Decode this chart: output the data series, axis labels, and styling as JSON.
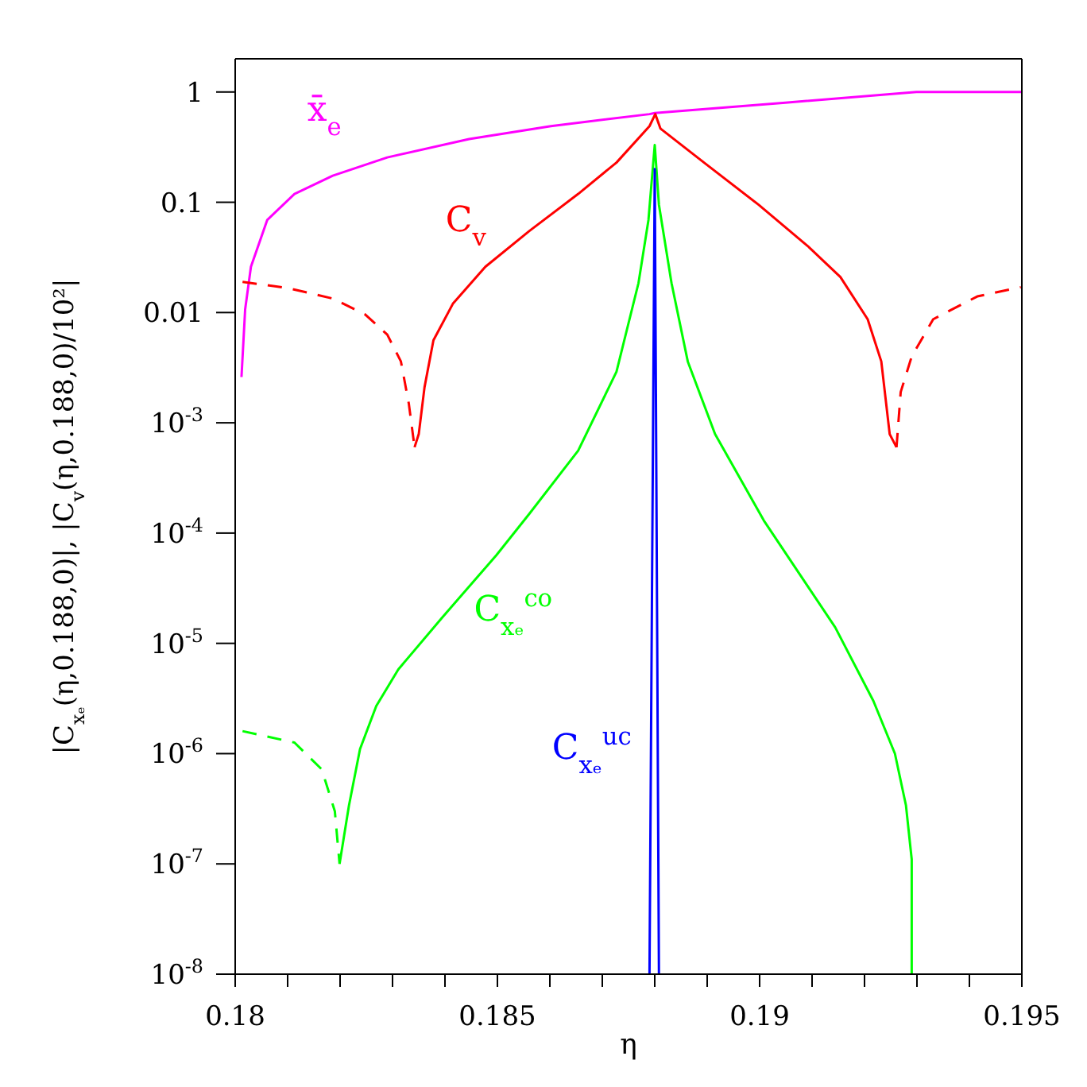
{
  "chart_data": {
    "type": "line",
    "xlabel": "η",
    "ylabel": "|C$_{xₑ}$(η,0.188,0)|,  |C$_{v}$(η,0.188,0)/10²|",
    "xlim": [
      0.18,
      0.195
    ],
    "xticks": [
      0.18,
      {
        "value": 0.181,
        "label": null
      },
      {
        "value": 0.182,
        "label": null
      },
      {
        "value": 0.183,
        "label": null
      },
      {
        "value": 0.184,
        "label": null
      },
      0.185,
      {
        "value": 0.186,
        "label": null
      },
      {
        "value": 0.187,
        "label": null
      },
      {
        "value": 0.188,
        "label": null
      },
      {
        "value": 0.189,
        "label": null
      },
      0.19,
      {
        "value": 0.191,
        "label": null
      },
      {
        "value": 0.192,
        "label": null
      },
      {
        "value": 0.193,
        "label": null
      },
      {
        "value": 0.194,
        "label": null
      },
      0.195
    ],
    "ylim": [
      1e-08,
      2
    ],
    "yticks": [
      {
        "value": 1e-08,
        "label": "10$^{-8}$"
      },
      {
        "value": 1e-07,
        "label": "10$^{-7}$"
      },
      {
        "value": 1e-06,
        "label": "10$^{-6}$"
      },
      {
        "value": 1e-05,
        "label": "10$^{-5}$"
      },
      {
        "value": 0.0001,
        "label": "10$^{-4}$"
      },
      {
        "value": 0.001,
        "label": "10$^{-3}$"
      },
      0.01,
      0.1,
      1
    ],
    "log": "y",
    "grid": false,
    "marker": "none",
    "series": [
      {
        "name": "x̄$_{e}$",
        "color": "#ff00ff",
        "line_style": "solid",
        "x": [
          0.18012,
          0.18019,
          0.1803,
          0.18061,
          0.18113,
          0.18186,
          0.1829,
          0.18446,
          0.18602,
          0.1879,
          0.188,
          0.19049,
          0.19299,
          0.195
        ],
        "values": [
          0.0026,
          0.0107,
          0.026,
          0.069,
          0.119,
          0.174,
          0.255,
          0.374,
          0.491,
          0.63,
          0.645,
          0.8,
          1.0,
          1.0
        ]
      },
      {
        "name": "C$_{v}$",
        "color": "#ff0000",
        "line_style": "solid",
        "x": [
          0.18342,
          0.1835,
          0.18361,
          0.18378,
          0.18415,
          0.18477,
          0.18561,
          0.18654,
          0.18727,
          0.1879,
          0.18801,
          0.18811,
          0.18894,
          0.18998,
          0.19092,
          0.19154,
          0.19206,
          0.19232,
          0.19248,
          0.19261
        ],
        "values": [
          0.0006,
          0.00079,
          0.0021,
          0.0056,
          0.012,
          0.026,
          0.055,
          0.119,
          0.229,
          0.49,
          0.63,
          0.465,
          0.229,
          0.095,
          0.04,
          0.021,
          0.0087,
          0.0036,
          0.00079,
          0.0006
        ]
      },
      {
        "color": "#ff0000",
        "line_style": "dashed",
        "x": [
          0.18014,
          0.18102,
          0.18186,
          0.18248,
          0.1829,
          0.18316,
          0.18331,
          0.18342
        ],
        "values": [
          0.019,
          0.0166,
          0.0134,
          0.0096,
          0.0063,
          0.0036,
          0.0015,
          0.0006
        ]
      },
      {
        "color": "#ff0000",
        "line_style": "dashed",
        "x": [
          0.19261,
          0.19269,
          0.1929,
          0.19331,
          0.19415,
          0.19498
        ],
        "values": [
          0.0006,
          0.0019,
          0.004,
          0.0087,
          0.014,
          0.017
        ]
      },
      {
        "name": "C$_{xₑ}$$^{co}$",
        "color": "#00ff00",
        "line_style": "solid",
        "x": [
          0.18199,
          0.18217,
          0.18238,
          0.18269,
          0.18311,
          0.18394,
          0.18498,
          0.18561,
          0.18654,
          0.18727,
          0.18769,
          0.18788,
          0.188,
          0.18808,
          0.18832,
          0.18863,
          0.18915,
          0.19008,
          0.19144,
          0.19217,
          0.19258,
          0.19279,
          0.1929,
          0.1929
        ],
        "values": [
          1e-07,
          3.4e-07,
          1.1e-06,
          2.7e-06,
          5.8e-06,
          1.7e-05,
          6.3e-05,
          0.00015,
          0.00056,
          0.0029,
          0.0185,
          0.069,
          0.33,
          0.095,
          0.0185,
          0.0036,
          0.00079,
          0.00013,
          1.4e-05,
          3e-06,
          1e-06,
          3.4e-07,
          1.1e-07,
          1e-08
        ]
      },
      {
        "color": "#00ff00",
        "line_style": "dashed",
        "x": [
          0.18014,
          0.18113,
          0.18165,
          0.1819,
          0.18199
        ],
        "values": [
          1.6e-06,
          1.26e-06,
          7.2e-07,
          3e-07,
          1e-07
        ]
      },
      {
        "name": "C$_{xₑ}$$^{uc}$",
        "color": "#0000ff",
        "line_style": "solid",
        "x": [
          0.1879,
          0.188,
          0.18808
        ],
        "values": [
          1e-08,
          0.2,
          1e-08
        ]
      }
    ]
  }
}
